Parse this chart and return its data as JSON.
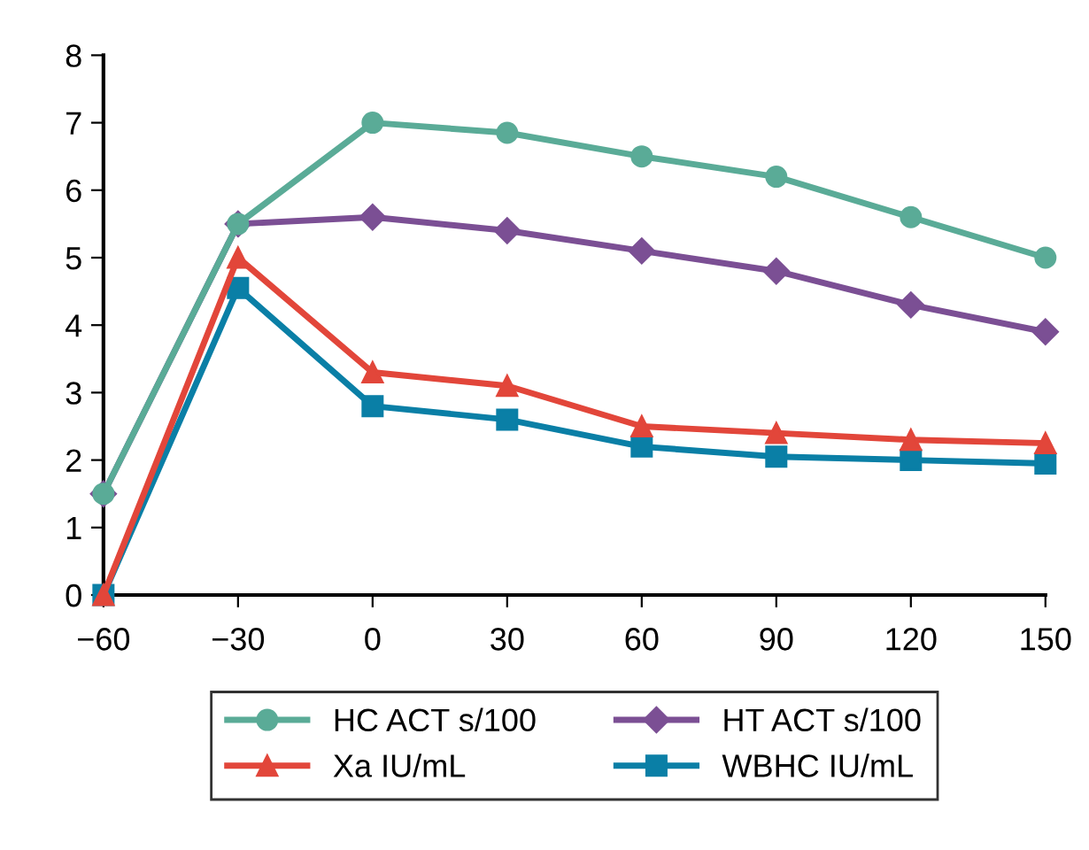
{
  "chart_data": {
    "type": "line",
    "x": [
      -60,
      -30,
      0,
      30,
      60,
      90,
      120,
      150
    ],
    "series": [
      {
        "name": "HC ACT s/100",
        "color": "#5aab97",
        "marker": "circle",
        "values": [
          1.5,
          5.5,
          7.0,
          6.85,
          6.5,
          6.2,
          5.6,
          5.0
        ]
      },
      {
        "name": "HT ACT s/100",
        "color": "#7b4f94",
        "marker": "diamond",
        "values": [
          1.5,
          5.5,
          5.6,
          5.4,
          5.1,
          4.8,
          4.3,
          3.9
        ]
      },
      {
        "name": "Xa IU/mL",
        "color": "#e2463a",
        "marker": "triangle",
        "values": [
          0,
          5.0,
          3.3,
          3.1,
          2.5,
          2.4,
          2.3,
          2.25
        ]
      },
      {
        "name": "WBHC IU/mL",
        "color": "#0a7fa6",
        "marker": "square",
        "values": [
          0,
          4.55,
          2.8,
          2.6,
          2.2,
          2.05,
          2.0,
          1.95
        ]
      }
    ],
    "xlim": [
      -60,
      150
    ],
    "xticks": [
      {
        "value": -60,
        "label": "−60"
      },
      {
        "value": -30,
        "label": "−30"
      },
      0,
      30,
      60,
      90,
      120,
      150
    ],
    "ylim": [
      0,
      8
    ],
    "yticks": [
      0,
      1,
      2,
      3,
      4,
      5,
      6,
      7,
      8
    ],
    "grid": false,
    "legend": "bottom",
    "line_style": "solid"
  }
}
